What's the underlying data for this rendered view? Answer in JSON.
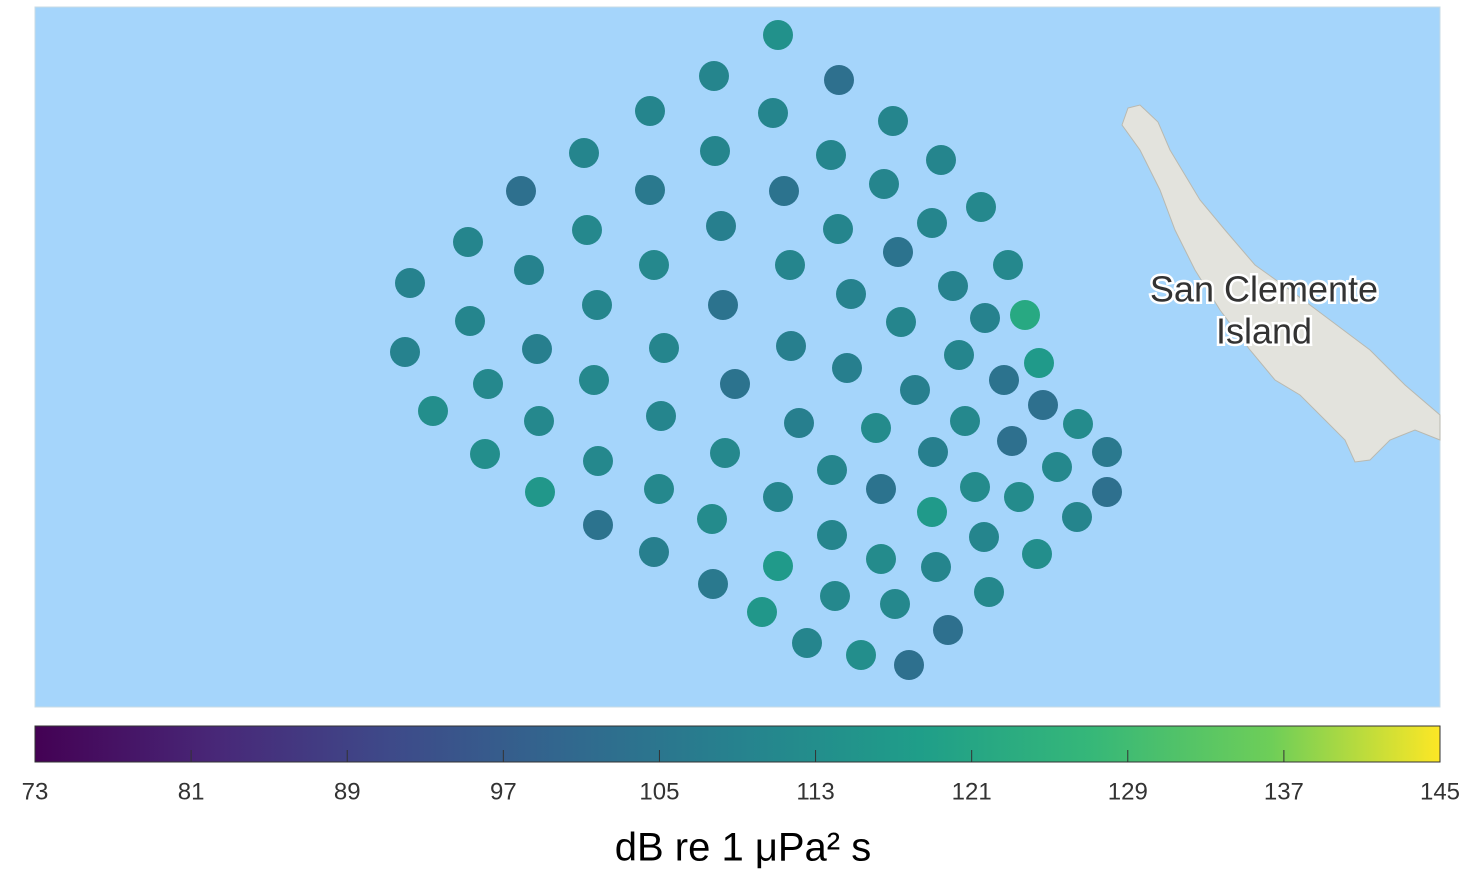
{
  "chart_data": {
    "type": "scatter",
    "colorbar_label": "dB re 1 μPa² s",
    "clim": [
      73,
      145
    ],
    "cticks": [
      73,
      81,
      89,
      97,
      105,
      113,
      121,
      129,
      137,
      145
    ],
    "colormap": "viridis",
    "map_labels": [
      "San Clemente",
      "Island"
    ],
    "values": [
      114,
      110,
      103,
      110,
      110,
      110,
      110,
      110,
      110,
      110,
      103,
      106,
      104,
      110,
      111,
      110,
      110,
      111,
      108,
      110,
      104,
      111,
      109,
      109,
      111,
      110,
      109,
      109,
      110,
      110,
      104,
      110,
      109,
      122,
      109,
      108,
      110,
      108,
      110,
      117,
      111,
      111,
      104,
      108,
      108,
      104,
      113,
      111,
      110,
      108,
      112,
      111,
      103,
      112,
      113,
      111,
      111,
      110,
      108,
      103,
      106,
      116,
      111,
      110,
      104,
      112,
      111,
      103,
      104,
      112,
      110,
      117,
      112,
      110,
      108,
      117,
      112,
      110,
      110,
      113,
      106,
      111,
      111,
      111,
      116,
      103,
      110,
      113,
      103
    ]
  }
}
